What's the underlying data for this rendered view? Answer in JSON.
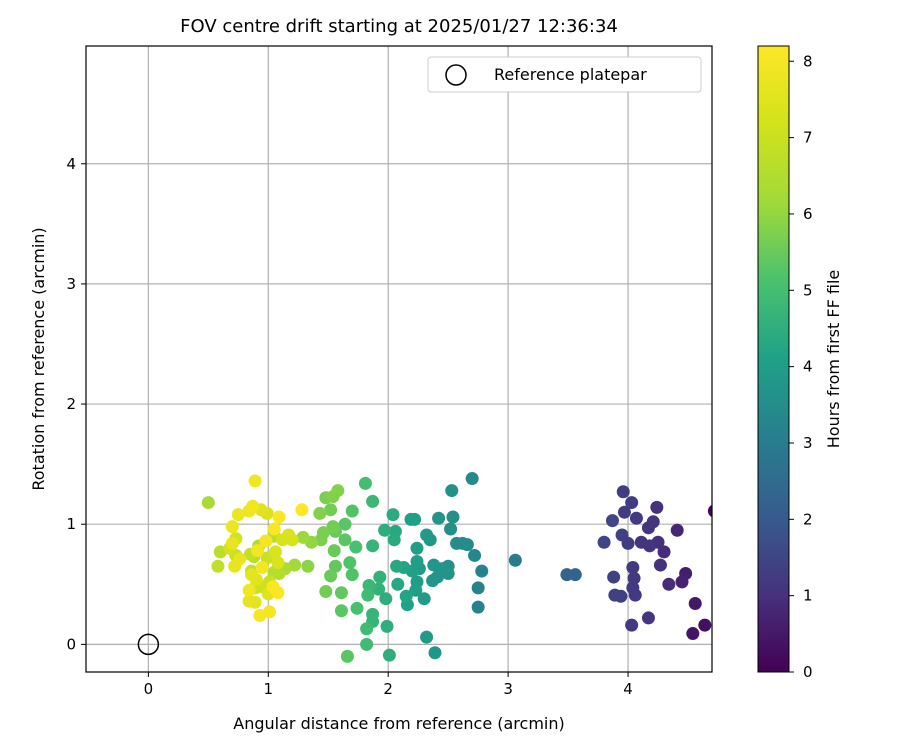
{
  "chart_data": {
    "type": "scatter",
    "title": "FOV centre drift starting at 2025/01/27 12:36:34",
    "xlabel": "Angular distance from reference (arcmin)",
    "ylabel": "Rotation from reference (arcmin)",
    "xlim": [
      -0.52,
      4.7
    ],
    "ylim": [
      -0.23,
      4.98
    ],
    "xticks": [
      0,
      1,
      2,
      3,
      4
    ],
    "yticks": [
      0,
      1,
      2,
      3,
      4
    ],
    "grid": true,
    "legend": {
      "placement": "top-right",
      "entries": [
        "Reference platepar"
      ]
    },
    "colorbar": {
      "label": "Hours from first FF file",
      "range": [
        0,
        8.2
      ],
      "ticks": [
        0,
        1,
        2,
        3,
        4,
        5,
        6,
        7,
        8
      ],
      "colormap": "viridis"
    },
    "reference_point": {
      "x": 0,
      "y": 0,
      "name": "Reference platepar"
    },
    "series": [
      {
        "columns": [
          "x",
          "y",
          "hours"
        ],
        "points": [
          [
            4.72,
            1.11,
            0.1
          ],
          [
            4.64,
            0.16,
            0.3
          ],
          [
            4.54,
            0.09,
            0.4
          ],
          [
            4.56,
            0.34,
            0.5
          ],
          [
            4.48,
            0.59,
            0.6
          ],
          [
            4.45,
            0.52,
            0.7
          ],
          [
            4.41,
            0.95,
            0.8
          ],
          [
            4.34,
            0.5,
            0.9
          ],
          [
            4.3,
            0.77,
            0.9
          ],
          [
            4.27,
            0.66,
            1.0
          ],
          [
            4.25,
            0.85,
            1.0
          ],
          [
            4.24,
            1.14,
            1.0
          ],
          [
            4.21,
            1.02,
            1.1
          ],
          [
            4.18,
            0.82,
            1.1
          ],
          [
            4.17,
            0.97,
            1.1
          ],
          [
            4.17,
            0.22,
            1.1
          ],
          [
            4.11,
            0.85,
            1.1
          ],
          [
            4.07,
            1.05,
            1.2
          ],
          [
            4.06,
            0.41,
            1.2
          ],
          [
            4.05,
            0.55,
            1.2
          ],
          [
            4.04,
            0.64,
            1.2
          ],
          [
            4.04,
            0.47,
            1.2
          ],
          [
            4.03,
            0.16,
            1.2
          ],
          [
            4.03,
            1.18,
            1.3
          ],
          [
            4.0,
            0.84,
            1.3
          ],
          [
            3.97,
            1.1,
            1.3
          ],
          [
            3.96,
            1.27,
            1.3
          ],
          [
            3.95,
            0.91,
            1.4
          ],
          [
            3.94,
            0.4,
            1.4
          ],
          [
            3.89,
            0.41,
            1.4
          ],
          [
            3.88,
            0.56,
            1.4
          ],
          [
            3.87,
            1.03,
            1.5
          ],
          [
            3.8,
            0.85,
            1.5
          ],
          [
            3.56,
            0.58,
            2.3
          ],
          [
            3.49,
            0.58,
            2.3
          ],
          [
            3.06,
            0.7,
            3.0
          ],
          [
            2.78,
            0.61,
            3.2
          ],
          [
            2.75,
            0.31,
            3.2
          ],
          [
            2.75,
            0.47,
            3.2
          ],
          [
            2.72,
            0.74,
            3.3
          ],
          [
            2.7,
            1.38,
            3.4
          ],
          [
            2.66,
            0.83,
            3.4
          ],
          [
            2.62,
            0.84,
            3.5
          ],
          [
            2.57,
            0.84,
            3.5
          ],
          [
            2.54,
            1.06,
            3.6
          ],
          [
            2.53,
            1.28,
            3.6
          ],
          [
            2.52,
            0.96,
            3.6
          ],
          [
            2.5,
            0.65,
            3.6
          ],
          [
            2.5,
            0.59,
            3.7
          ],
          [
            2.45,
            0.63,
            3.7
          ],
          [
            2.42,
            1.05,
            3.7
          ],
          [
            2.41,
            0.56,
            3.7
          ],
          [
            2.39,
            -0.07,
            3.8
          ],
          [
            2.38,
            0.66,
            3.8
          ],
          [
            2.37,
            0.53,
            3.8
          ],
          [
            2.35,
            0.87,
            3.8
          ],
          [
            2.32,
            0.91,
            3.9
          ],
          [
            2.32,
            0.06,
            3.9
          ],
          [
            2.3,
            0.38,
            3.9
          ],
          [
            2.26,
            0.63,
            3.9
          ],
          [
            2.24,
            0.52,
            4.0
          ],
          [
            2.24,
            0.69,
            4.0
          ],
          [
            2.24,
            0.8,
            4.0
          ],
          [
            2.23,
            0.45,
            4.0
          ],
          [
            2.22,
            1.04,
            4.1
          ],
          [
            2.2,
            0.61,
            4.1
          ],
          [
            2.19,
            1.04,
            4.1
          ],
          [
            2.16,
            0.33,
            4.1
          ],
          [
            2.15,
            0.4,
            4.2
          ],
          [
            2.13,
            0.64,
            4.2
          ],
          [
            2.07,
            0.65,
            4.3
          ],
          [
            2.08,
            0.5,
            4.3
          ],
          [
            2.06,
            0.94,
            4.3
          ],
          [
            2.05,
            0.87,
            4.4
          ],
          [
            2.04,
            1.08,
            4.4
          ],
          [
            2.01,
            -0.09,
            4.5
          ],
          [
            1.99,
            0.15,
            4.5
          ],
          [
            1.98,
            0.38,
            4.5
          ],
          [
            1.97,
            0.95,
            4.5
          ],
          [
            1.93,
            0.56,
            4.6
          ],
          [
            1.92,
            0.46,
            4.6
          ],
          [
            1.87,
            0.25,
            4.7
          ],
          [
            1.87,
            0.19,
            4.7
          ],
          [
            1.87,
            0.82,
            4.7
          ],
          [
            1.87,
            1.19,
            4.8
          ],
          [
            1.84,
            0.49,
            4.8
          ],
          [
            1.83,
            0.41,
            4.9
          ],
          [
            1.82,
            0.0,
            4.9
          ],
          [
            1.82,
            0.13,
            4.9
          ],
          [
            1.81,
            1.34,
            5.0
          ],
          [
            1.74,
            0.3,
            5.1
          ],
          [
            1.73,
            0.81,
            5.1
          ],
          [
            1.7,
            0.58,
            5.2
          ],
          [
            1.7,
            1.11,
            5.2
          ],
          [
            1.68,
            0.68,
            5.2
          ],
          [
            1.66,
            -0.1,
            5.3
          ],
          [
            1.64,
            0.87,
            5.3
          ],
          [
            1.64,
            1.0,
            5.3
          ],
          [
            1.61,
            0.28,
            5.3
          ],
          [
            1.61,
            0.43,
            5.4
          ],
          [
            1.56,
            0.65,
            5.4
          ],
          [
            1.55,
            0.78,
            5.5
          ],
          [
            1.56,
            0.94,
            5.5
          ],
          [
            1.52,
            0.57,
            5.5
          ],
          [
            1.54,
            0.98,
            5.6
          ],
          [
            1.52,
            1.12,
            5.6
          ],
          [
            1.48,
            0.44,
            5.6
          ],
          [
            1.46,
            0.93,
            5.7
          ],
          [
            1.44,
            0.87,
            5.7
          ],
          [
            1.48,
            1.22,
            5.7
          ],
          [
            1.58,
            1.28,
            5.8
          ],
          [
            1.54,
            1.23,
            5.8
          ],
          [
            1.43,
            1.09,
            5.8
          ],
          [
            1.33,
            0.65,
            5.9
          ],
          [
            1.36,
            0.85,
            6.0
          ],
          [
            1.29,
            0.89,
            6.1
          ],
          [
            1.22,
            0.66,
            6.2
          ],
          [
            0.5,
            1.18,
            6.3
          ],
          [
            1.14,
            0.63,
            6.4
          ],
          [
            1.09,
            0.59,
            6.5
          ],
          [
            0.92,
            0.82,
            6.5
          ],
          [
            0.88,
            0.73,
            6.6
          ],
          [
            1.05,
            0.6,
            6.6
          ],
          [
            1.05,
            0.9,
            6.7
          ],
          [
            0.6,
            0.77,
            6.7
          ],
          [
            0.58,
            0.65,
            6.8
          ],
          [
            0.86,
            0.61,
            6.8
          ],
          [
            0.85,
            0.75,
            6.9
          ],
          [
            0.73,
            0.74,
            6.9
          ],
          [
            0.99,
            0.72,
            7.0
          ],
          [
            1.01,
            0.52,
            7.0
          ],
          [
            0.89,
            0.47,
            7.1
          ],
          [
            0.95,
            0.48,
            7.1
          ],
          [
            0.73,
            0.88,
            7.2
          ],
          [
            0.68,
            0.8,
            7.2
          ],
          [
            1.12,
            0.87,
            7.3
          ],
          [
            1.2,
            0.87,
            7.3
          ],
          [
            1.17,
            0.91,
            7.3
          ],
          [
            1.06,
            0.77,
            7.4
          ],
          [
            1.08,
            0.68,
            7.4
          ],
          [
            0.99,
            1.09,
            7.4
          ],
          [
            0.94,
            1.12,
            7.5
          ],
          [
            0.9,
            0.54,
            7.5
          ],
          [
            1.0,
            0.42,
            7.5
          ],
          [
            0.89,
            0.35,
            7.6
          ],
          [
            0.86,
            0.58,
            7.6
          ],
          [
            0.84,
            0.36,
            7.6
          ],
          [
            0.76,
            0.71,
            7.7
          ],
          [
            0.72,
            0.65,
            7.7
          ],
          [
            0.7,
            0.84,
            7.7
          ],
          [
            0.7,
            0.98,
            7.8
          ],
          [
            0.75,
            1.08,
            7.8
          ],
          [
            0.84,
            1.11,
            7.8
          ],
          [
            0.84,
            0.45,
            7.9
          ],
          [
            0.87,
            1.15,
            7.9
          ],
          [
            0.89,
            1.36,
            7.9
          ],
          [
            0.91,
            0.78,
            7.9
          ],
          [
            0.93,
            0.24,
            8.0
          ],
          [
            0.95,
            0.64,
            8.0
          ],
          [
            0.98,
            0.86,
            8.0
          ],
          [
            1.01,
            0.27,
            8.0
          ],
          [
            1.04,
            0.48,
            8.1
          ],
          [
            1.05,
            0.96,
            8.1
          ],
          [
            1.08,
            0.43,
            8.1
          ],
          [
            1.09,
            1.06,
            8.1
          ],
          [
            1.28,
            1.12,
            8.2
          ]
        ]
      }
    ]
  }
}
